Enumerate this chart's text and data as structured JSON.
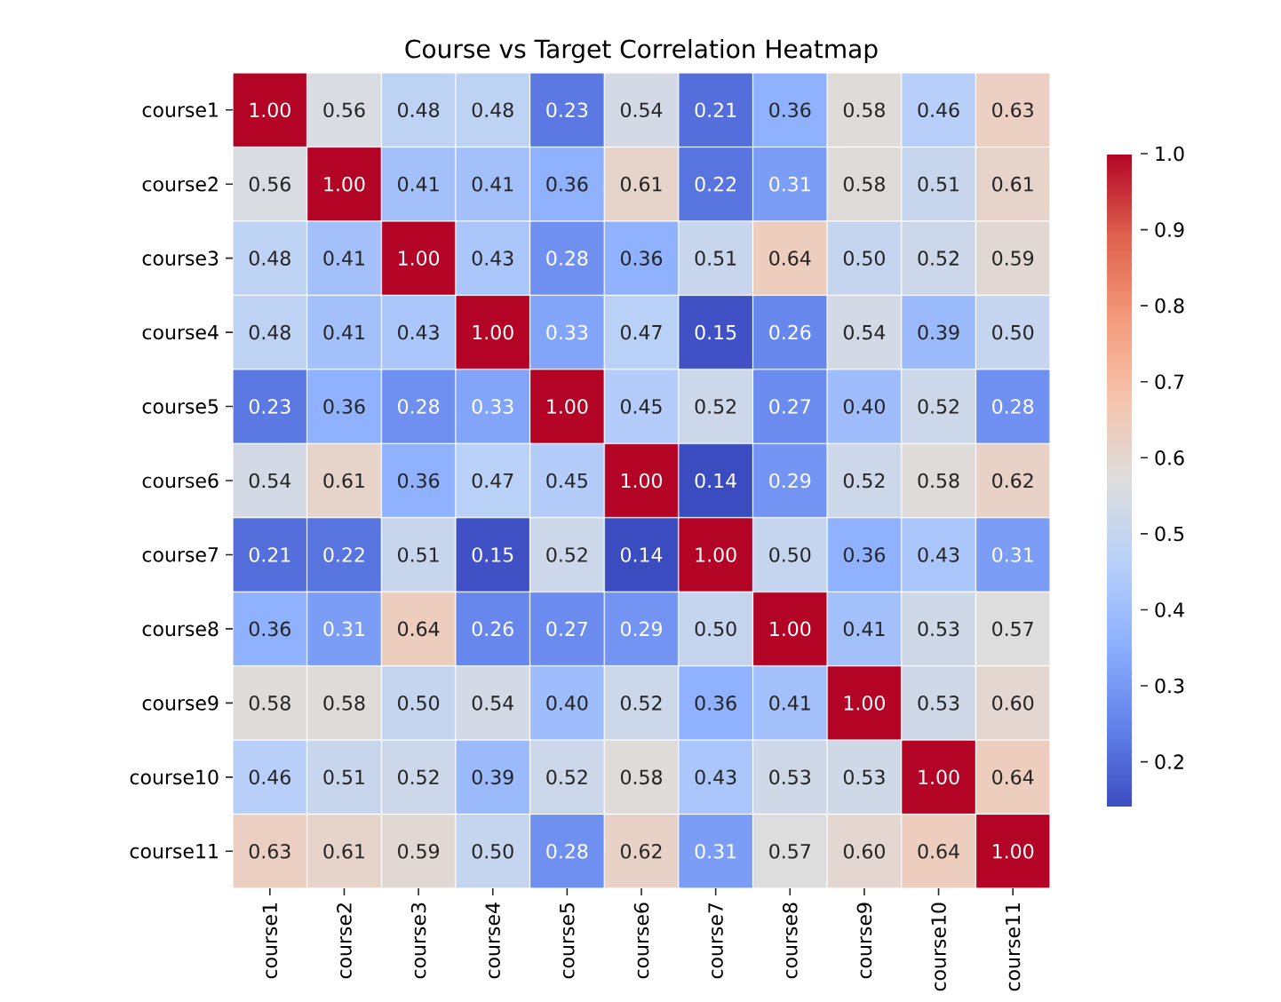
{
  "chart_data": {
    "type": "heatmap",
    "title": "Course vs Target Correlation Heatmap",
    "categories": [
      "course1",
      "course2",
      "course3",
      "course4",
      "course5",
      "course6",
      "course7",
      "course8",
      "course9",
      "course10",
      "course11"
    ],
    "y_categories": [
      "course1",
      "course2",
      "course3",
      "course4",
      "course5",
      "course6",
      "course7",
      "course8",
      "course9",
      "course10",
      "course11"
    ],
    "cells": [
      [
        1.0,
        0.56,
        0.48,
        0.48,
        0.23,
        0.54,
        0.21,
        0.36,
        0.58,
        0.46,
        0.63
      ],
      [
        0.56,
        1.0,
        0.41,
        0.41,
        0.36,
        0.61,
        0.22,
        0.31,
        0.58,
        0.51,
        0.61
      ],
      [
        0.48,
        0.41,
        1.0,
        0.43,
        0.28,
        0.36,
        0.51,
        0.64,
        0.5,
        0.52,
        0.59
      ],
      [
        0.48,
        0.41,
        0.43,
        1.0,
        0.33,
        0.47,
        0.15,
        0.26,
        0.54,
        0.39,
        0.5
      ],
      [
        0.23,
        0.36,
        0.28,
        0.33,
        1.0,
        0.45,
        0.52,
        0.27,
        0.4,
        0.52,
        0.28
      ],
      [
        0.54,
        0.61,
        0.36,
        0.47,
        0.45,
        1.0,
        0.14,
        0.29,
        0.52,
        0.58,
        0.62
      ],
      [
        0.21,
        0.22,
        0.51,
        0.15,
        0.52,
        0.14,
        1.0,
        0.5,
        0.36,
        0.43,
        0.31
      ],
      [
        0.36,
        0.31,
        0.64,
        0.26,
        0.27,
        0.29,
        0.5,
        1.0,
        0.41,
        0.53,
        0.57
      ],
      [
        0.58,
        0.58,
        0.5,
        0.54,
        0.4,
        0.52,
        0.36,
        0.41,
        1.0,
        0.53,
        0.6
      ],
      [
        0.46,
        0.51,
        0.52,
        0.39,
        0.52,
        0.58,
        0.43,
        0.53,
        0.53,
        1.0,
        0.64
      ],
      [
        0.63,
        0.61,
        0.59,
        0.5,
        0.28,
        0.62,
        0.31,
        0.57,
        0.6,
        0.64,
        1.0
      ]
    ],
    "cell_labels": [
      [
        "1.00",
        "0.56",
        "0.48",
        "0.48",
        "0.23",
        "0.54",
        "0.21",
        "0.36",
        "0.58",
        "0.46",
        "0.63"
      ],
      [
        "0.56",
        "1.00",
        "0.41",
        "0.41",
        "0.36",
        "0.61",
        "0.22",
        "0.31",
        "0.58",
        "0.51",
        "0.61"
      ],
      [
        "0.48",
        "0.41",
        "1.00",
        "0.43",
        "0.28",
        "0.36",
        "0.51",
        "0.64",
        "0.50",
        "0.52",
        "0.59"
      ],
      [
        "0.48",
        "0.41",
        "0.43",
        "1.00",
        "0.33",
        "0.47",
        "0.15",
        "0.26",
        "0.54",
        "0.39",
        "0.50"
      ],
      [
        "0.23",
        "0.36",
        "0.28",
        "0.33",
        "1.00",
        "0.45",
        "0.52",
        "0.27",
        "0.40",
        "0.52",
        "0.28"
      ],
      [
        "0.54",
        "0.61",
        "0.36",
        "0.47",
        "0.45",
        "1.00",
        "0.14",
        "0.29",
        "0.52",
        "0.58",
        "0.62"
      ],
      [
        "0.21",
        "0.22",
        "0.51",
        "0.15",
        "0.52",
        "0.14",
        "1.00",
        "0.50",
        "0.36",
        "0.43",
        "0.31"
      ],
      [
        "0.36",
        "0.31",
        "0.64",
        "0.26",
        "0.27",
        "0.29",
        "0.50",
        "1.00",
        "0.41",
        "0.53",
        "0.57"
      ],
      [
        "0.58",
        "0.58",
        "0.50",
        "0.54",
        "0.40",
        "0.52",
        "0.36",
        "0.41",
        "1.00",
        "0.53",
        "0.60"
      ],
      [
        "0.46",
        "0.51",
        "0.52",
        "0.39",
        "0.52",
        "0.58",
        "0.43",
        "0.53",
        "0.53",
        "1.00",
        "0.64"
      ],
      [
        "0.63",
        "0.61",
        "0.59",
        "0.50",
        "0.28",
        "0.62",
        "0.31",
        "0.57",
        "0.60",
        "0.64",
        "1.00"
      ]
    ],
    "clim": [
      0.14,
      1.0
    ],
    "cticks": [
      0.2,
      0.3,
      0.4,
      0.5,
      0.6,
      0.7,
      0.8,
      0.9,
      {
        "value": 1.0,
        "label": "1.0"
      }
    ]
  }
}
